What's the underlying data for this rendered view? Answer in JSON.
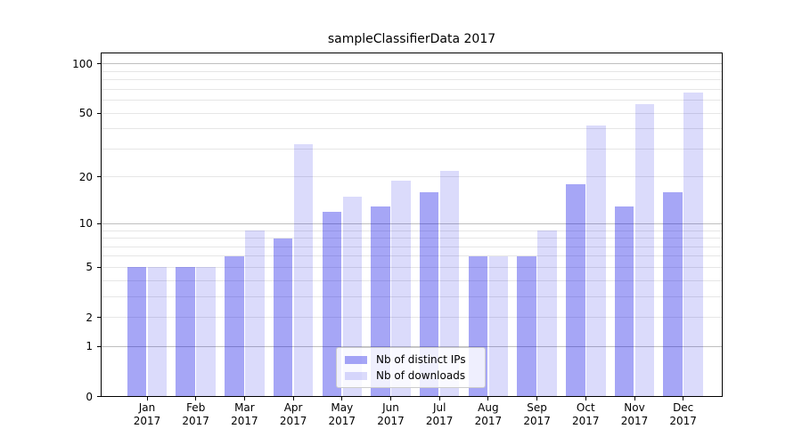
{
  "chart_data": {
    "type": "bar",
    "title": "sampleClassifierData 2017",
    "categories": [
      "Jan",
      "Feb",
      "Mar",
      "Apr",
      "May",
      "Jun",
      "Jul",
      "Aug",
      "Sep",
      "Oct",
      "Nov",
      "Dec"
    ],
    "category_year": "2017",
    "series": [
      {
        "name": "Nb of distinct IPs",
        "color": "rgba(0,0,230,0.35)",
        "values": [
          5,
          5,
          6,
          8,
          12,
          13,
          16,
          6,
          6,
          18,
          13,
          16
        ]
      },
      {
        "name": "Nb of downloads",
        "color": "rgba(0,0,230,0.14)",
        "values": [
          5,
          5,
          9,
          32,
          15,
          19,
          22,
          6,
          9,
          42,
          57,
          67
        ]
      }
    ],
    "xlabel": "",
    "ylabel": "",
    "yscale": "log1p",
    "ylim": [
      0,
      120
    ],
    "yticks": [
      0,
      1,
      2,
      5,
      10,
      20,
      50,
      100
    ],
    "gridlines": {
      "major": [
        1,
        10,
        100
      ],
      "minor": [
        2,
        3,
        4,
        5,
        6,
        7,
        8,
        9,
        20,
        30,
        40,
        50,
        60,
        70,
        80,
        90
      ]
    },
    "grid": true,
    "legend_position": "lower center"
  },
  "colors": {
    "background": "#ffffff",
    "spine": "#000000",
    "grid_major": "#bfbfbf",
    "grid_minor": "#e6e6e6",
    "text": "#000000",
    "legend_border": "#cccccc",
    "bar_distinct_ips": "rgba(0,0,230,0.35)",
    "bar_downloads": "rgba(0,0,230,0.14)"
  }
}
